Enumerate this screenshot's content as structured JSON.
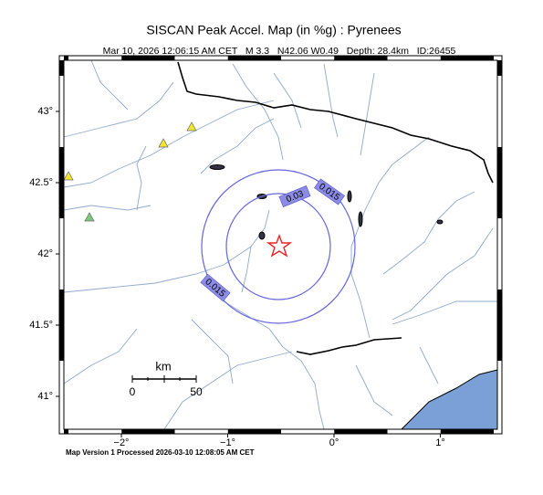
{
  "title": "SISCAN Peak Accel. Map (in %g) : Pyrenees",
  "subtitle": "Mar 10, 2026 12:06:15 AM CET   M 3.3   N42.06 W0.49   Depth: 28.4km   ID:26455",
  "footer": "Map Version 1 Processed 2026-03-10 12:08:05 AM CET",
  "map": {
    "x_tick_labels": [
      "−2°",
      "−1°",
      "0°",
      "1°"
    ],
    "y_tick_labels": [
      "43°",
      "42.5°",
      "42°",
      "41.5°",
      "41°"
    ],
    "contour_labels": [
      "0.015",
      "0.03",
      "0.015"
    ],
    "scale_bar": {
      "title": "km",
      "labels": [
        "0",
        "50"
      ]
    }
  }
}
